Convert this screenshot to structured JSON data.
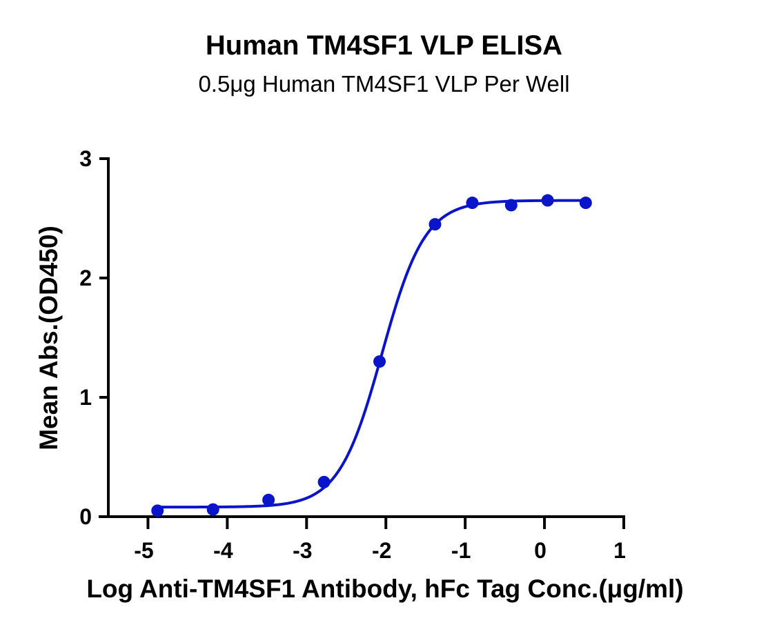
{
  "chart_data": {
    "type": "scatter",
    "title": "Human TM4SF1 VLP ELISA",
    "subtitle": "0.5μg Human TM4SF1 VLP Per Well",
    "xlabel": "Log Anti-TM4SF1 Antibody, hFc Tag Conc.(μg/ml)",
    "ylabel": "Mean Abs.(OD450)",
    "xlim": [
      -5.5,
      1
    ],
    "ylim": [
      0,
      3
    ],
    "xticks": [
      "-5",
      "-4",
      "-3",
      "-2",
      "-1",
      "0",
      "1"
    ],
    "yticks": [
      "0",
      "1",
      "2",
      "3"
    ],
    "grid": false,
    "color": "#0a14c8",
    "series": [
      {
        "x": [
          -4.88,
          -4.18,
          -3.48,
          -2.78,
          -2.08,
          -1.38,
          -0.91,
          -0.42,
          0.04,
          0.52
        ],
        "y": [
          0.05,
          0.06,
          0.14,
          0.29,
          1.3,
          2.45,
          2.63,
          2.61,
          2.65,
          2.63
        ]
      }
    ],
    "fit": {
      "model": "4PL",
      "bottom": 0.08,
      "top": 2.65,
      "logEC50": -2.05,
      "hill": 1.6
    }
  }
}
